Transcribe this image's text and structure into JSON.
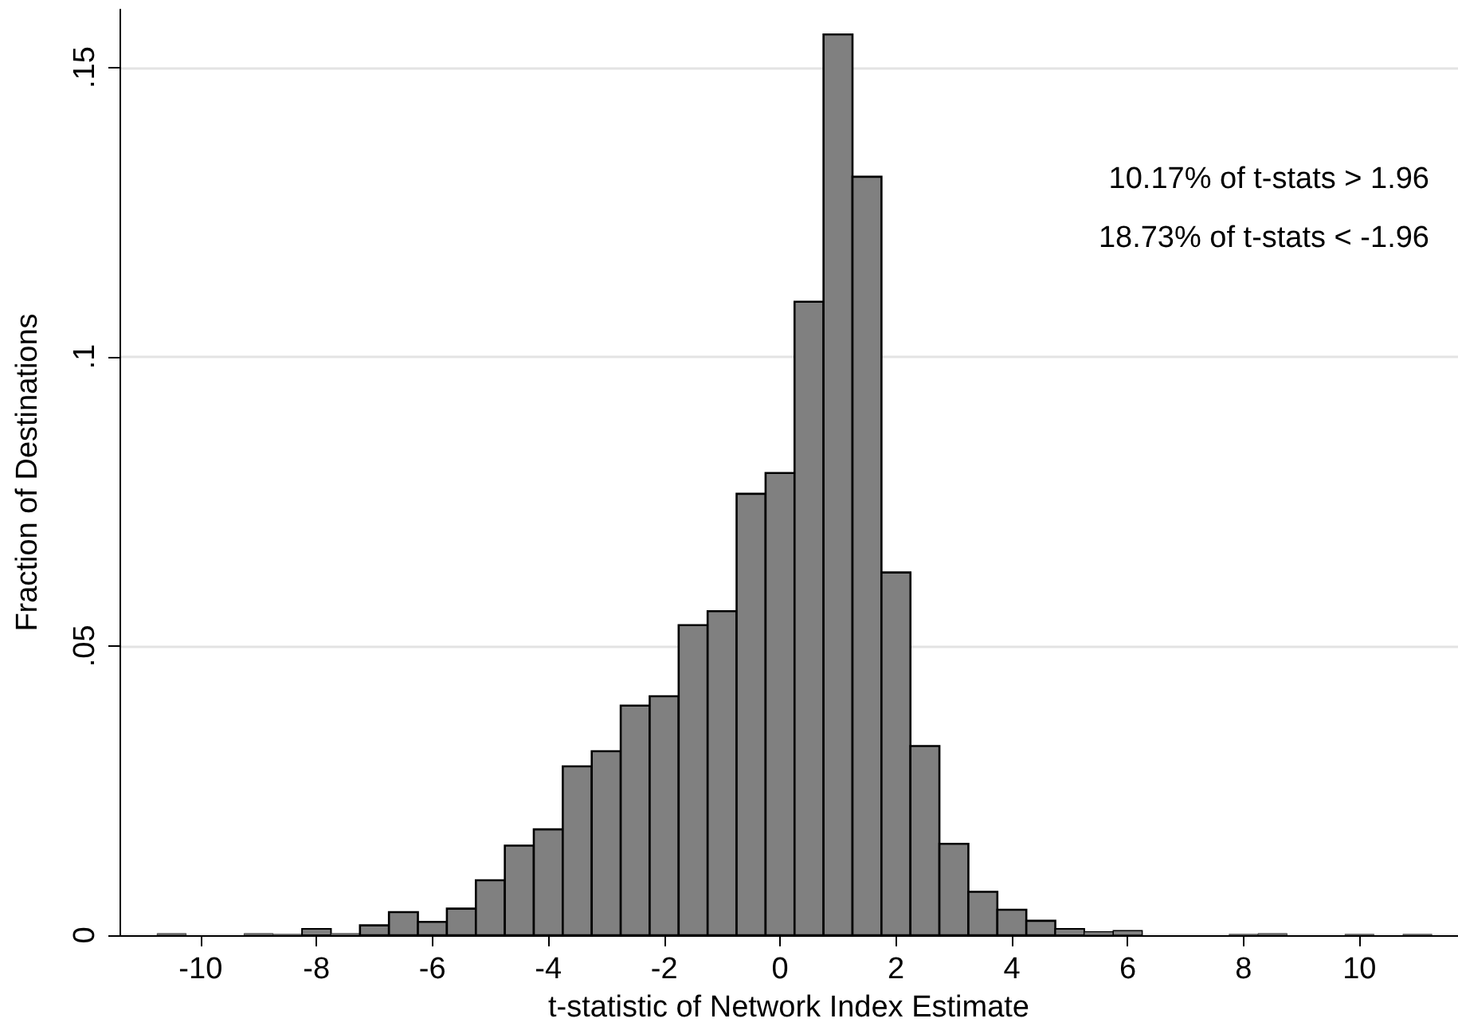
{
  "chart_data": {
    "type": "histogram",
    "xlabel": "t-statistic of Network Index Estimate",
    "ylabel": "Fraction of Destinations",
    "annotations": [
      "10.17% of t-stats > 1.96",
      "18.73% of t-stats < -1.96"
    ],
    "bins": [
      -10.75,
      -10.25,
      -9.75,
      -9.25,
      -8.75,
      -8.25,
      -7.75,
      -7.25,
      -6.75,
      -6.25,
      -5.75,
      -5.25,
      -4.75,
      -4.25,
      -3.75,
      -3.25,
      -2.75,
      -2.25,
      -1.75,
      -1.25,
      -0.75,
      -0.25,
      0.25,
      0.75,
      1.25,
      1.75,
      2.25,
      2.75,
      3.25,
      3.75,
      4.25,
      4.75,
      5.25,
      5.75,
      6.25,
      6.75,
      7.25,
      7.75,
      8.25,
      8.75,
      9.25,
      9.75,
      10.25,
      10.75,
      11.25
    ],
    "values": [
      0.0003,
      0,
      0,
      0.0003,
      0.0002,
      0.0011,
      0.0003,
      0.0017,
      0.004,
      0.0023,
      0.0046,
      0.0095,
      0.0155,
      0.0183,
      0.0292,
      0.0318,
      0.0397,
      0.0413,
      0.0536,
      0.056,
      0.0763,
      0.0799,
      0.1095,
      0.1557,
      0.1311,
      0.0627,
      0.0327,
      0.0158,
      0.0075,
      0.0044,
      0.0025,
      0.0011,
      0.0006,
      0.0008,
      0,
      0,
      0,
      0.0002,
      0.0003,
      0,
      0,
      0.0002,
      0,
      0.0002
    ],
    "color": "#808080",
    "xlim": [
      -11.4,
      11.7
    ],
    "xticks": [
      -10,
      -8,
      -6,
      -4,
      -2,
      0,
      2,
      4,
      6,
      8,
      10
    ],
    "ylim": [
      0,
      0.16
    ],
    "yticks": [
      0,
      {
        "value": 0.05,
        "label": ".05"
      },
      {
        "value": 0.1,
        "label": ".1"
      },
      {
        "value": 0.15,
        "label": ".15"
      }
    ],
    "grid": "y"
  }
}
